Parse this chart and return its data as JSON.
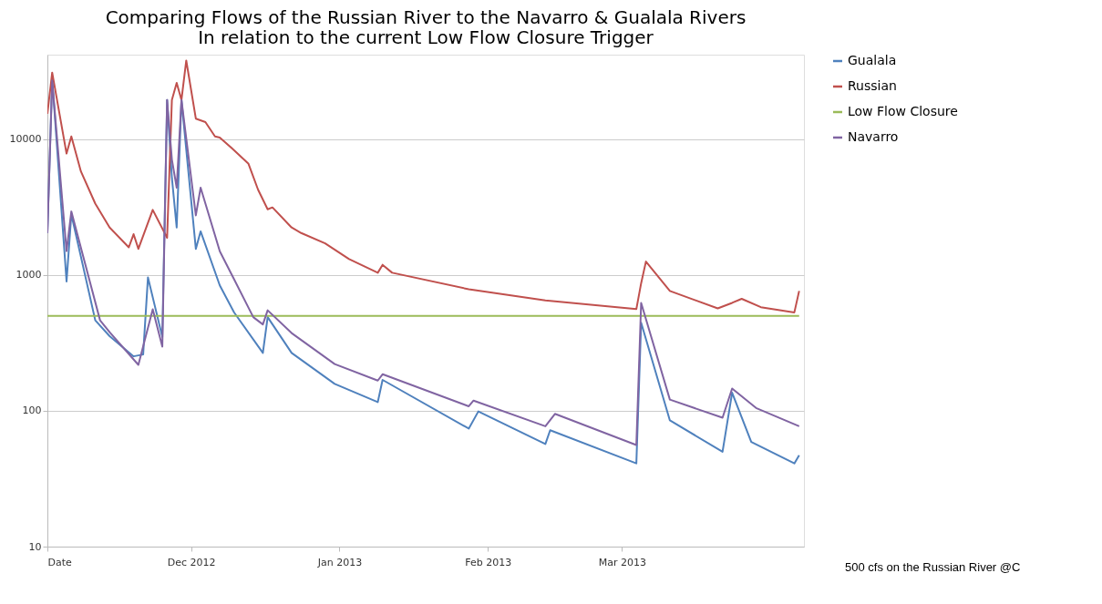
{
  "chart_data": {
    "type": "line",
    "title": "Comparing Flows of the Russian River to the Navarro & Gualala Rivers",
    "subtitle": "In relation to the current  Low Flow Closure Trigger",
    "log": "y",
    "grid": "y",
    "legend": "right",
    "line_style": "solid",
    "xlim": [
      "2012-11-01",
      "2013-04-08"
    ],
    "xticks": [
      {
        "value": "2012-11-01",
        "label": "Date"
      },
      {
        "value": "2012-12-01",
        "label": "Dec 2012"
      },
      {
        "value": "2013-01-01",
        "label": "Jan 2013"
      },
      {
        "value": "2013-02-01",
        "label": "Feb 2013"
      },
      {
        "value": "2013-03-01",
        "label": "Mar 2013"
      }
    ],
    "ylim": [
      10,
      42000
    ],
    "yticks": [
      10,
      100,
      1000,
      10000
    ],
    "annotations": [
      "500 cfs on the Russian River @C"
    ],
    "series": [
      {
        "name": "Gualala",
        "color": "#4f81bd",
        "x": [
          "2012-11-01",
          "2012-11-02",
          "2012-11-05",
          "2012-11-06",
          "2012-11-11",
          "2012-11-14",
          "2012-11-19",
          "2012-11-21",
          "2012-11-22",
          "2012-11-25",
          "2012-11-26",
          "2012-11-27",
          "2012-11-28",
          "2012-11-29",
          "2012-12-02",
          "2012-12-03",
          "2012-12-07",
          "2012-12-10",
          "2012-12-16",
          "2012-12-17",
          "2012-12-22",
          "2012-12-31",
          "2013-01-09",
          "2013-01-10",
          "2013-01-28",
          "2013-01-30",
          "2013-02-13",
          "2013-02-14",
          "2013-03-04",
          "2013-03-05",
          "2013-03-11",
          "2013-03-22",
          "2013-03-24",
          "2013-03-28",
          "2013-04-06",
          "2013-04-07"
        ],
        "values": [
          2040,
          28000,
          897,
          2800,
          464,
          355,
          252,
          260,
          960,
          350,
          19500,
          5200,
          2240,
          19500,
          1560,
          2100,
          840,
          530,
          267,
          490,
          267,
          158,
          116,
          169,
          74,
          99,
          57,
          72,
          41,
          446,
          85,
          50,
          136,
          59,
          41,
          47
        ]
      },
      {
        "name": "Russian",
        "color": "#c0504d",
        "x": [
          "2012-11-01",
          "2012-11-02",
          "2012-11-05",
          "2012-11-06",
          "2012-11-08",
          "2012-11-11",
          "2012-11-14",
          "2012-11-18",
          "2012-11-19",
          "2012-11-20",
          "2012-11-23",
          "2012-11-26",
          "2012-11-27",
          "2012-11-28",
          "2012-11-29",
          "2012-11-30",
          "2012-12-02",
          "2012-12-04",
          "2012-12-06",
          "2012-12-07",
          "2012-12-10",
          "2012-12-13",
          "2012-12-15",
          "2012-12-17",
          "2012-12-18",
          "2012-12-22",
          "2012-12-24",
          "2012-12-29",
          "2013-01-03",
          "2013-01-09",
          "2013-01-10",
          "2013-01-12",
          "2013-01-28",
          "2013-02-13",
          "2013-03-04",
          "2013-03-05",
          "2013-03-06",
          "2013-03-11",
          "2013-03-21",
          "2013-03-24",
          "2013-03-26",
          "2013-03-30",
          "2013-04-06",
          "2013-04-07"
        ],
        "values": [
          15400,
          31000,
          7850,
          10500,
          5800,
          3360,
          2240,
          1600,
          2000,
          1560,
          3020,
          1880,
          19500,
          26000,
          19500,
          38000,
          14200,
          13400,
          10500,
          10300,
          8300,
          6600,
          4250,
          3050,
          3150,
          2240,
          2040,
          1710,
          1310,
          1040,
          1190,
          1040,
          786,
          650,
          561,
          870,
          1257,
          764,
          568,
          624,
          668,
          580,
          531,
          764
        ]
      },
      {
        "name": "Low Flow Closure",
        "color": "#9bbb59",
        "x": [
          "2012-11-01",
          "2013-04-07"
        ],
        "values": [
          500,
          500
        ]
      },
      {
        "name": "Navarro",
        "color": "#8064a2",
        "x": [
          "2012-11-01",
          "2012-11-02",
          "2012-11-05",
          "2012-11-06",
          "2012-11-12",
          "2012-11-14",
          "2012-11-20",
          "2012-11-23",
          "2012-11-25",
          "2012-11-26",
          "2012-11-27",
          "2012-11-28",
          "2012-11-29",
          "2012-12-02",
          "2012-12-03",
          "2012-12-07",
          "2012-12-14",
          "2012-12-16",
          "2012-12-17",
          "2012-12-22",
          "2012-12-31",
          "2013-01-09",
          "2013-01-10",
          "2013-01-28",
          "2013-01-29",
          "2013-02-13",
          "2013-02-15",
          "2013-03-04",
          "2013-03-05",
          "2013-03-11",
          "2013-03-22",
          "2013-03-24",
          "2013-03-29",
          "2013-04-07"
        ],
        "values": [
          2040,
          27000,
          1500,
          2940,
          464,
          380,
          218,
          560,
          297,
          19500,
          7100,
          4400,
          19500,
          2750,
          4400,
          1500,
          490,
          433,
          550,
          374,
          221,
          167,
          186,
          108,
          119,
          77,
          95,
          56,
          624,
          121,
          89,
          146,
          105,
          77
        ]
      }
    ]
  }
}
